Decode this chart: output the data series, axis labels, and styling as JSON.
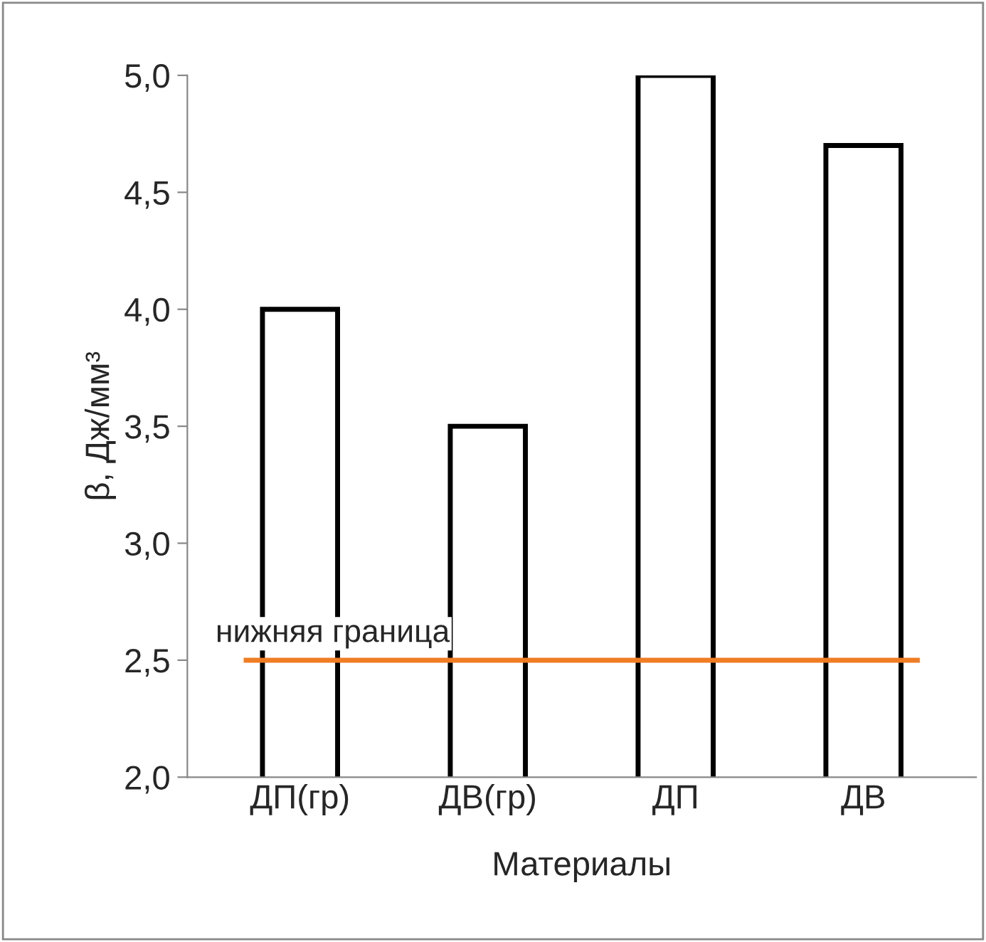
{
  "chart_data": {
    "type": "bar",
    "xlabel": "Материалы",
    "ylabel": "β, Дж/мм³",
    "categories": [
      "ДП(гр)",
      "ДВ(гр)",
      "ДП",
      "ДВ"
    ],
    "series": [
      {
        "color": "#ffffff",
        "values": [
          4.0,
          3.5,
          5.0,
          4.7
        ]
      }
    ],
    "ylim": [
      2,
      5
    ],
    "yticks": [
      {
        "value": 2,
        "label": "2,0"
      },
      {
        "value": 2.5,
        "label": "2,5"
      },
      {
        "value": 3,
        "label": "3,0"
      },
      {
        "value": 3.5,
        "label": "3,5"
      },
      {
        "value": 4,
        "label": "4,0"
      },
      {
        "value": 4.5,
        "label": "4,5"
      },
      {
        "value": 5,
        "label": "5,0"
      }
    ],
    "ref_lines": [
      {
        "axis": "y",
        "value": 2.5,
        "label": "нижняя граница",
        "color": "#f07d24"
      }
    ],
    "grid": false,
    "legend": false
  }
}
